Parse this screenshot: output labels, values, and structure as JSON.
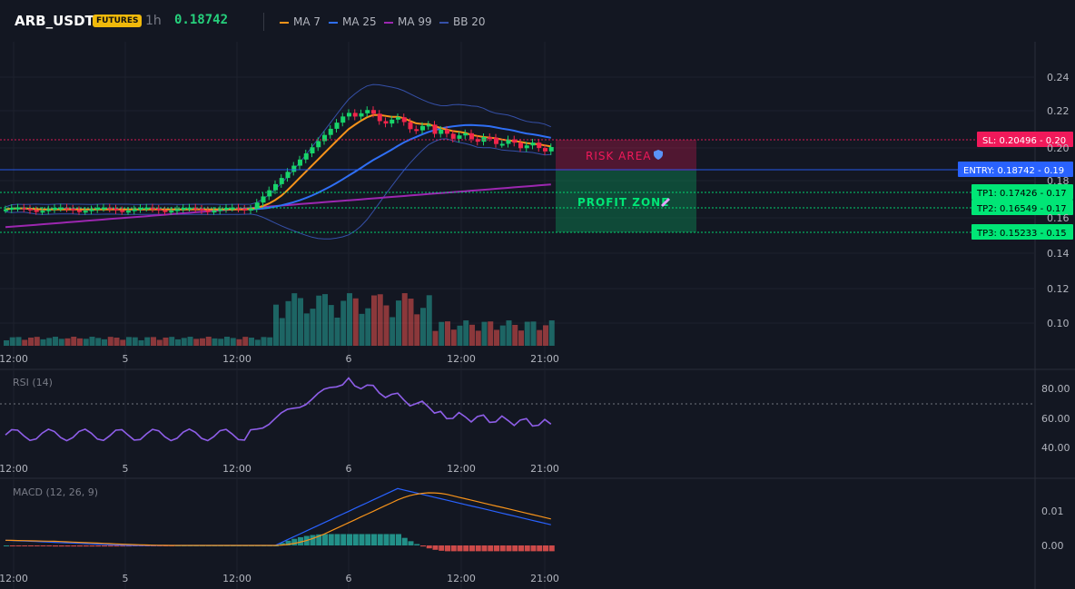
{
  "header": {
    "symbol": "ARB_USDT",
    "badge": "FUTURES",
    "interval": "1h",
    "price": "0.18742",
    "legend": [
      {
        "label": "MA 7",
        "color": "#f7931a"
      },
      {
        "label": "MA 25",
        "color": "#2f6ff5"
      },
      {
        "label": "MA 99",
        "color": "#9c27b0"
      },
      {
        "label": "BB 20",
        "color": "#3550a8"
      }
    ]
  },
  "colors": {
    "up": "#26a69a",
    "down": "#ef5350",
    "candle_up": "#18d46a",
    "candle_down": "#f0264b"
  },
  "main_chart": {
    "y_ticks": [
      "0.24",
      "0.22",
      "0.20",
      "0.18",
      "0.16",
      "0.14",
      "0.12",
      "0.10"
    ],
    "x_ticks": [
      "12:00",
      "5",
      "12:00",
      "6",
      "12:00",
      "21:00"
    ],
    "zones": {
      "risk_label": "RISK AREA",
      "profit_label": "PROFIT ZONE"
    },
    "price_levels": [
      {
        "label": "SL: 0.20496",
        "value_label": "0.20",
        "color": "#f0195a"
      },
      {
        "label": "ENTRY: 0.18742",
        "value_label": "0.19",
        "color": "#2962ff"
      },
      {
        "label": "TP1: 0.17426",
        "value_label": "0.17",
        "color": "#00e676"
      },
      {
        "label": "TP2: 0.16549",
        "value_label": "0.17",
        "color": "#00e676"
      },
      {
        "label": "TP3: 0.15233",
        "value_label": "0.15",
        "color": "#00e676"
      }
    ]
  },
  "rsi": {
    "title": "RSI (14)",
    "y_ticks": [
      "80.00",
      "60.00",
      "40.00"
    ],
    "x_ticks": [
      "12:00",
      "5",
      "12:00",
      "6",
      "12:00",
      "21:00"
    ]
  },
  "macd": {
    "title": "MACD (12, 26, 9)",
    "y_ticks": [
      "0.01",
      "0.00"
    ],
    "x_ticks": [
      "12:00",
      "5",
      "12:00",
      "6",
      "12:00",
      "21:00"
    ]
  }
}
